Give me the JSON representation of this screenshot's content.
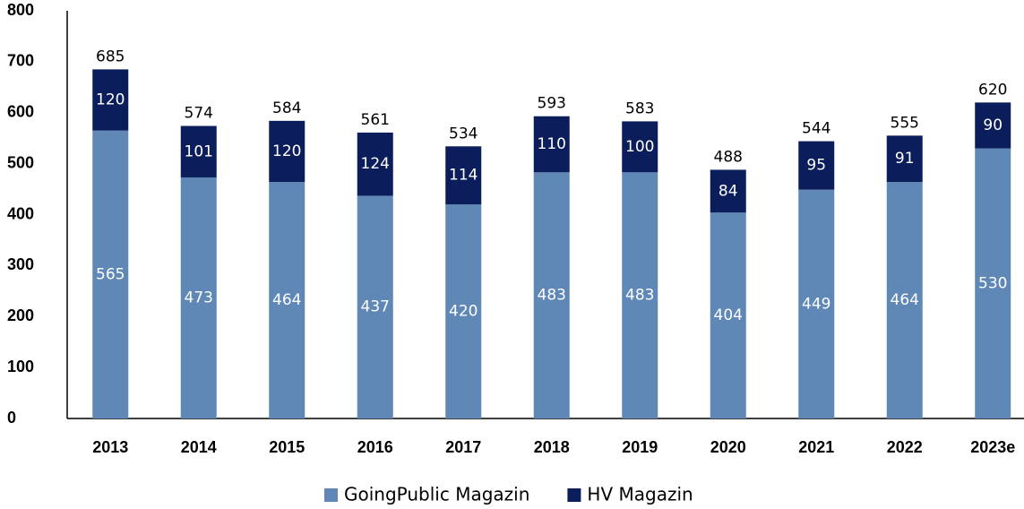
{
  "chart_data": {
    "type": "stacked_bar",
    "categories": [
      "2013",
      "2014",
      "2015",
      "2016",
      "2017",
      "2018",
      "2019",
      "2020",
      "2021",
      "2022",
      "2023e"
    ],
    "series": [
      {
        "name": "GoingPublic Magazin",
        "color": "#5f88b6",
        "values": [
          565,
          473,
          464,
          437,
          420,
          483,
          483,
          404,
          449,
          464,
          530
        ]
      },
      {
        "name": "HV Magazin",
        "color": "#0b1e5b",
        "values": [
          120,
          101,
          120,
          124,
          114,
          110,
          100,
          84,
          95,
          91,
          90
        ]
      }
    ],
    "totals": [
      685,
      574,
      584,
      561,
      534,
      593,
      583,
      488,
      544,
      555,
      620
    ],
    "ylim": [
      0,
      800
    ],
    "yticks": [
      0,
      100,
      200,
      300,
      400,
      500,
      600,
      700,
      800
    ],
    "legend": "bottom"
  }
}
